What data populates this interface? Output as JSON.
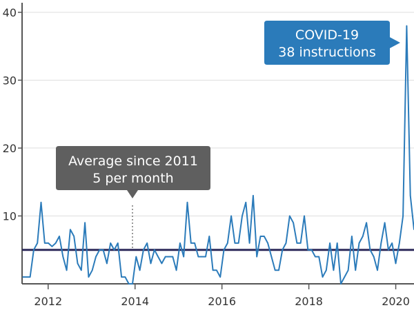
{
  "chart_data": {
    "type": "line",
    "title": "",
    "xlabel": "",
    "ylabel": "",
    "x_start": "2011-06",
    "x_end": "2020-05",
    "xlim": [
      2011.4,
      2020.42
    ],
    "ylim": [
      0,
      41
    ],
    "x_ticks": [
      2012,
      2014,
      2016,
      2018,
      2020
    ],
    "x_tick_labels": [
      "2012",
      "2014",
      "2016",
      "2018",
      "2020"
    ],
    "y_ticks": [
      10,
      20,
      30,
      40
    ],
    "y_tick_labels": [
      "10",
      "20",
      "30",
      "40"
    ],
    "grid": true,
    "average": 5,
    "series": [
      {
        "color": "#2b7bba",
        "values": [
          1,
          1,
          1,
          5,
          6,
          12,
          6,
          6,
          5.5,
          6,
          7,
          4,
          2,
          8,
          7,
          3,
          2,
          9,
          1,
          2,
          4,
          5,
          5,
          3,
          6,
          5,
          6,
          1,
          1,
          0,
          0,
          4,
          2,
          5,
          6,
          3,
          5,
          4,
          3,
          4,
          4,
          4,
          2,
          6,
          4,
          12,
          6,
          6,
          4,
          4,
          4,
          7,
          2,
          2,
          1,
          5,
          6,
          10,
          6,
          6,
          10,
          12,
          6,
          13,
          4,
          7,
          7,
          6,
          4,
          2,
          2,
          5,
          6,
          10,
          9,
          6,
          6,
          10,
          5,
          5,
          4,
          4,
          1,
          2,
          6,
          2,
          6,
          0,
          1,
          2,
          7,
          2,
          6,
          7,
          9,
          5,
          4,
          2,
          6,
          9,
          5,
          6,
          3,
          6,
          10,
          38,
          13,
          8
        ]
      }
    ],
    "average_line_color": "#2d2a5a",
    "annotations": {
      "average": {
        "line1": "Average since 2011",
        "line2": "5 per month",
        "color": "#5f5f5f"
      },
      "covid": {
        "line1": "COVID-19",
        "line2": "38 instructions",
        "color": "#2b7bba"
      }
    }
  }
}
